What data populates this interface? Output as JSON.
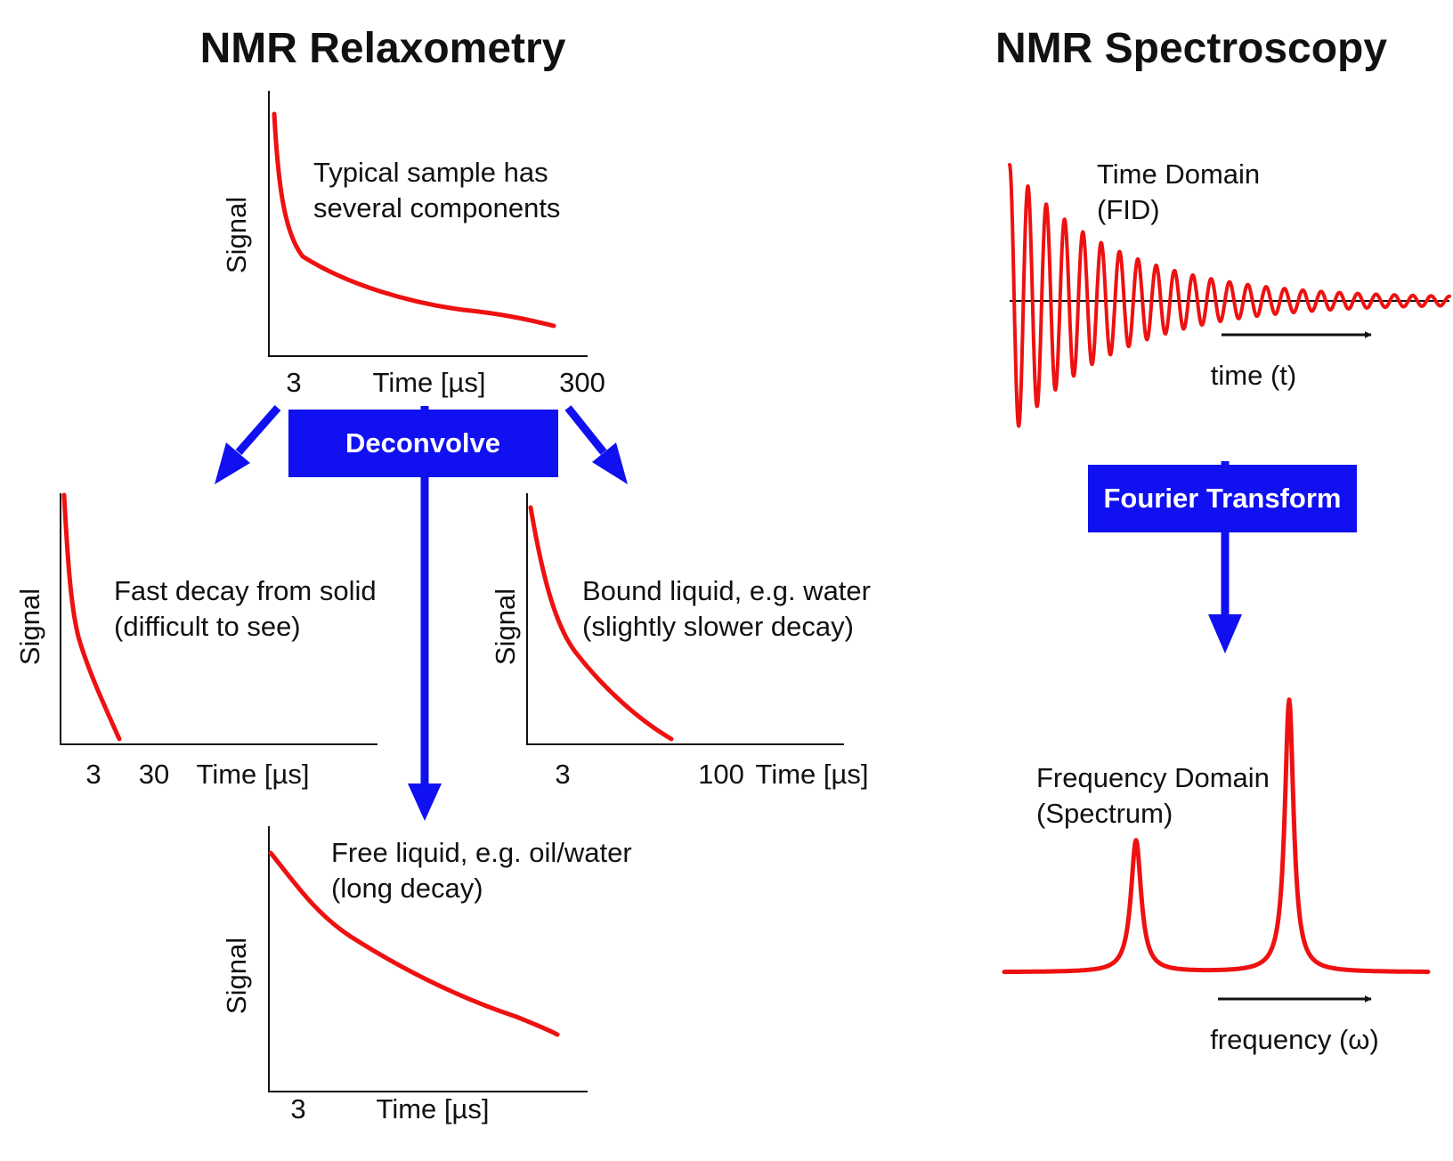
{
  "colors": {
    "curve": "#ee1111",
    "flow": "#1010f0",
    "ink": "#111111",
    "box_text": "#ffffff"
  },
  "relaxometry": {
    "title": "NMR Relaxometry",
    "main_plot": {
      "ylabel": "Signal",
      "annotation": [
        "Typical sample has",
        "several components"
      ],
      "tick_left": "3",
      "xlabel": "Time [µs]",
      "tick_right": "300"
    },
    "deconvolve_label": "Deconvolve",
    "solid_plot": {
      "ylabel": "Signal",
      "annotation": [
        "Fast decay from solid",
        "(difficult to see)"
      ],
      "tick_left": "3",
      "tick_right": "30",
      "xlabel": "Time [µs]"
    },
    "bound_plot": {
      "ylabel": "Signal",
      "annotation": [
        "Bound liquid, e.g. water",
        "(slightly slower decay)"
      ],
      "tick_left": "3",
      "tick_right": "100",
      "xlabel": "Time [µs]"
    },
    "free_plot": {
      "ylabel": "Signal",
      "annotation": [
        "Free liquid, e.g. oil/water",
        "(long decay)"
      ],
      "tick_left": "3",
      "xlabel": "Time [µs]"
    }
  },
  "spectroscopy": {
    "title": "NMR Spectroscopy",
    "time_domain": [
      "Time Domain",
      "(FID)"
    ],
    "time_axis": "time (t)",
    "transform_label": "Fourier Transform",
    "frequency_domain": [
      "Frequency Domain",
      "(Spectrum)"
    ],
    "frequency_axis": "frequency (ω)"
  }
}
